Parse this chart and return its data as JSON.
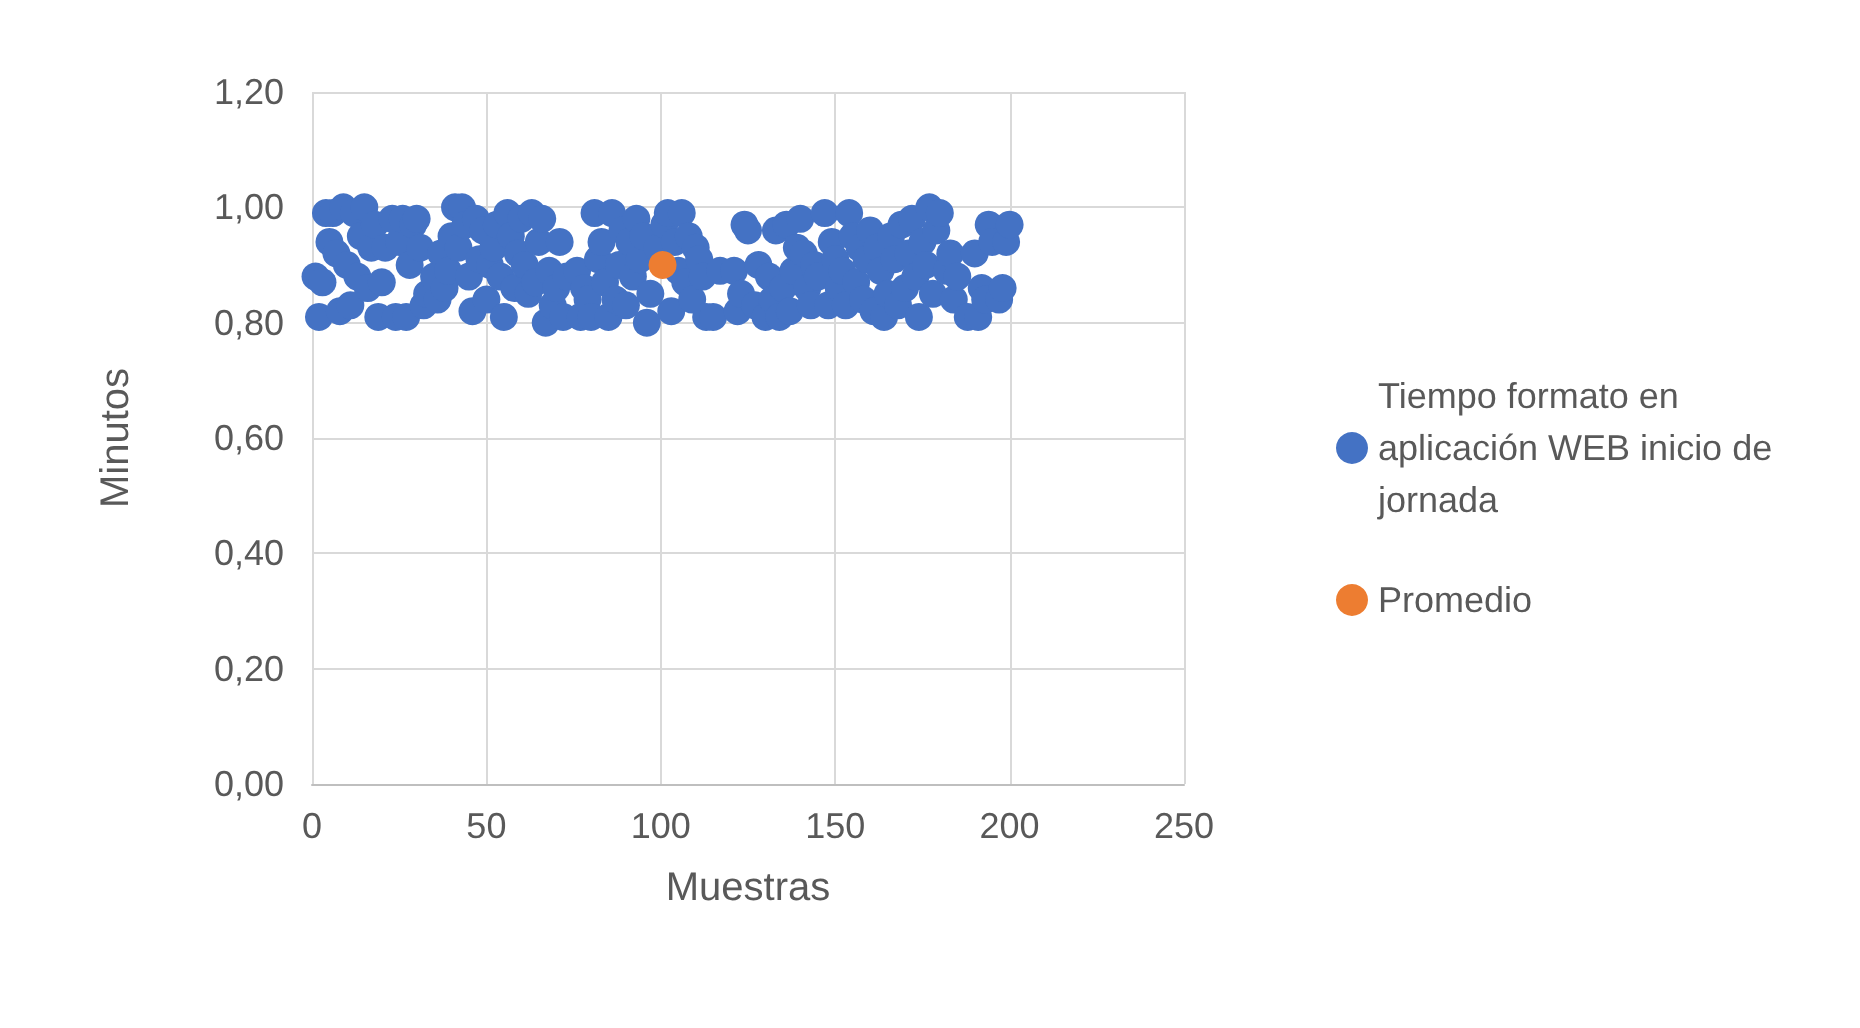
{
  "chart_data": {
    "type": "scatter",
    "xlabel": "Muestras",
    "ylabel": "Minutos",
    "xlim": [
      0,
      250
    ],
    "xticks": [
      0,
      50,
      100,
      150,
      200,
      250
    ],
    "ylim": [
      0,
      1.2
    ],
    "yticks": [
      {
        "value": 0,
        "label": "0,00"
      },
      {
        "value": 0.2,
        "label": "0,20"
      },
      {
        "value": 0.4,
        "label": "0,40"
      },
      {
        "value": 0.6,
        "label": "0,60"
      },
      {
        "value": 0.8,
        "label": "0,80"
      },
      {
        "value": 1,
        "label": "1,00"
      },
      {
        "value": 1.2,
        "label": "1,20"
      }
    ],
    "grid": true,
    "legend": "right",
    "marker": "circle",
    "series": [
      {
        "name": "Tiempo formato en aplicación WEB inicio de jornada",
        "color": "#4472c4",
        "x": [
          1,
          2,
          3,
          4,
          5,
          6,
          7,
          8,
          9,
          10,
          11,
          12,
          13,
          14,
          15,
          16,
          17,
          18,
          19,
          20,
          21,
          22,
          23,
          24,
          25,
          26,
          27,
          28,
          29,
          30,
          31,
          32,
          33,
          34,
          35,
          36,
          37,
          38,
          39,
          40,
          41,
          42,
          43,
          44,
          45,
          46,
          47,
          48,
          49,
          50,
          51,
          52,
          53,
          54,
          55,
          56,
          57,
          58,
          59,
          60,
          61,
          62,
          63,
          64,
          65,
          66,
          67,
          68,
          69,
          70,
          71,
          72,
          73,
          74,
          75,
          76,
          77,
          78,
          79,
          80,
          81,
          82,
          83,
          84,
          85,
          86,
          87,
          88,
          89,
          90,
          91,
          92,
          93,
          94,
          95,
          96,
          97,
          98,
          99,
          100,
          101,
          102,
          103,
          104,
          105,
          106,
          107,
          108,
          109,
          110,
          111,
          112,
          113,
          114,
          115,
          116,
          117,
          118,
          119,
          120,
          121,
          122,
          123,
          124,
          125,
          126,
          127,
          128,
          129,
          130,
          131,
          132,
          133,
          134,
          135,
          136,
          137,
          138,
          139,
          140,
          141,
          142,
          143,
          144,
          145,
          146,
          147,
          148,
          149,
          150,
          151,
          152,
          153,
          154,
          155,
          156,
          157,
          158,
          159,
          160,
          161,
          162,
          163,
          164,
          165,
          166,
          167,
          168,
          169,
          170,
          171,
          172,
          173,
          174,
          175,
          176,
          177,
          178,
          179,
          180,
          181,
          182,
          183,
          184,
          185,
          186,
          187,
          188,
          189,
          190,
          191,
          192,
          193,
          194,
          195,
          196,
          197,
          198,
          199,
          200
        ],
        "values": [
          0.88,
          0.81,
          0.87,
          0.99,
          0.94,
          0.99,
          0.92,
          0.82,
          1.0,
          0.9,
          0.83,
          0.99,
          0.88,
          0.95,
          1.0,
          0.86,
          0.93,
          0.97,
          0.81,
          0.87,
          0.93,
          null,
          0.98,
          0.81,
          0.94,
          0.98,
          0.81,
          0.9,
          0.97,
          0.98,
          0.93,
          0.83,
          0.85,
          null,
          0.88,
          0.84,
          0.92,
          0.86,
          0.89,
          0.95,
          1.0,
          0.93,
          1.0,
          0.97,
          0.88,
          0.82,
          0.98,
          0.91,
          0.96,
          0.84,
          0.9,
          0.93,
          0.97,
          0.88,
          0.81,
          0.99,
          0.95,
          0.86,
          0.92,
          0.98,
          0.9,
          0.85,
          0.99,
          0.87,
          0.94,
          0.98,
          0.8,
          0.89,
          0.83,
          0.86,
          0.94,
          0.81,
          0.88,
          null,
          null,
          0.89,
          0.81,
          0.86,
          0.84,
          0.81,
          0.99,
          0.91,
          0.94,
          0.87,
          0.81,
          0.99,
          0.84,
          0.9,
          0.96,
          0.83,
          0.94,
          0.88,
          0.98,
          0.91,
          0.95,
          0.8,
          0.85,
          null,
          0.93,
          null,
          0.97,
          0.99,
          0.82,
          0.94,
          0.89,
          0.99,
          0.87,
          0.95,
          0.84,
          0.93,
          0.91,
          0.88,
          0.81,
          null,
          0.81,
          null,
          0.89,
          null,
          null,
          null,
          0.89,
          0.82,
          0.85,
          0.97,
          0.96,
          null,
          0.83,
          0.9,
          null,
          0.81,
          0.88,
          0.84,
          0.96,
          0.81,
          0.86,
          0.97,
          0.82,
          0.89,
          0.93,
          0.98,
          0.92,
          0.86,
          0.83,
          0.9,
          0.88,
          null,
          0.99,
          0.83,
          0.94,
          0.91,
          0.86,
          0.89,
          0.83,
          0.99,
          0.95,
          0.87,
          0.93,
          0.84,
          0.91,
          0.96,
          0.82,
          0.93,
          0.89,
          0.81,
          0.85,
          0.95,
          0.91,
          0.83,
          0.97,
          0.86,
          0.92,
          0.98,
          0.88,
          0.81,
          0.94,
          0.9,
          1.0,
          0.85,
          0.96,
          0.99,
          null,
          0.89,
          0.92,
          0.84,
          0.88,
          null,
          null,
          0.81,
          null,
          0.92,
          0.81,
          0.86,
          0.84,
          0.97,
          0.94,
          null,
          0.84,
          0.86,
          0.94,
          0.97
        ]
      },
      {
        "name": "Promedio",
        "color": "#ed7d31",
        "x": [
          100.5
        ],
        "values": [
          0.9
        ]
      }
    ]
  }
}
